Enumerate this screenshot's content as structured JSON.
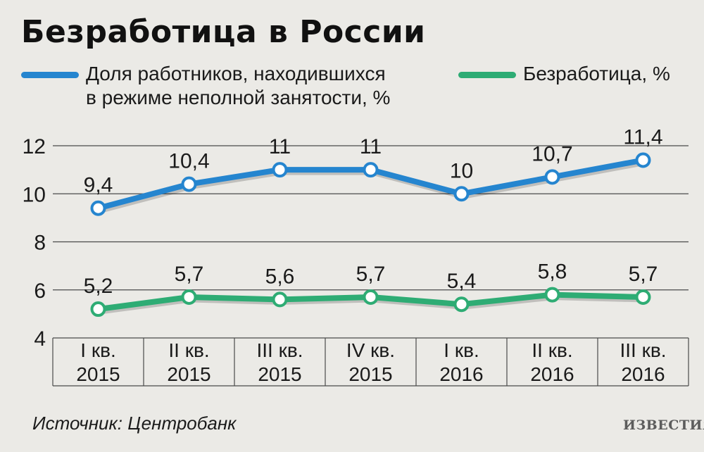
{
  "title": "Безработица в России",
  "legend": [
    {
      "label": "Доля работников, находившихся\nв режиме неполной занятости, %",
      "color": "#2585cf"
    },
    {
      "label": "Безработица, %",
      "color": "#2eac74"
    }
  ],
  "source": "Источник: Центробанк",
  "logo": "ИЗВЕСТИЯ",
  "chart_data": {
    "type": "line",
    "title": "Безработица в России",
    "categories": [
      [
        "I кв.",
        "2015"
      ],
      [
        "II кв.",
        "2015"
      ],
      [
        "III кв.",
        "2015"
      ],
      [
        "IV кв.",
        "2015"
      ],
      [
        "I кв.",
        "2016"
      ],
      [
        "II кв.",
        "2016"
      ],
      [
        "III кв.",
        "2016"
      ]
    ],
    "series": [
      {
        "name": "Доля работников, находившихся в режиме неполной занятости, %",
        "color": "#2585cf",
        "values": [
          9.4,
          10.4,
          11,
          11,
          10,
          10.7,
          11.4
        ],
        "labels": [
          "9,4",
          "10,4",
          "11",
          "11",
          "10",
          "10,7",
          "11,4"
        ]
      },
      {
        "name": "Безработица, %",
        "color": "#2eac74",
        "values": [
          5.2,
          5.7,
          5.6,
          5.7,
          5.4,
          5.8,
          5.7
        ],
        "labels": [
          "5,2",
          "5,7",
          "5,6",
          "5,7",
          "5,4",
          "5,8",
          "5,7"
        ]
      }
    ],
    "ylim": [
      4,
      12
    ],
    "yticks": [
      4,
      6,
      8,
      10,
      12
    ],
    "grid": true,
    "legend_position": "top"
  }
}
